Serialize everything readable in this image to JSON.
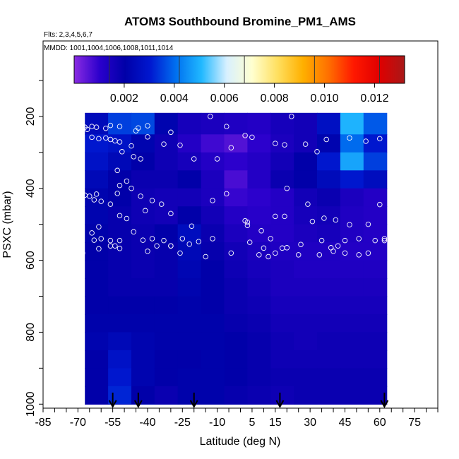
{
  "chart_data": {
    "type": "heatmap",
    "title": "ATOM3 Southbound Bromine_PM1_AMS",
    "subtitle_flights": "Flts: 2,3,4,5,6,7",
    "subtitle_dates": "MMDD: 1001,1004,1006,1008,1011,1014",
    "xlabel": "Latitude (deg N)",
    "ylabel": "PSXC (mbar)",
    "xlim": [
      -85,
      85
    ],
    "ylim": [
      1000,
      0
    ],
    "x_ticks": [
      -85,
      -70,
      -55,
      -40,
      -25,
      -10,
      5,
      15,
      30,
      45,
      60,
      75
    ],
    "y_ticks": [
      200,
      400,
      600,
      800,
      1000
    ],
    "colorbar": {
      "range": [
        0,
        0.0132
      ],
      "ticks": [
        "0.002",
        "0.004",
        "0.006",
        "0.008",
        "0.010",
        "0.012"
      ],
      "tick_values": [
        0.002,
        0.004,
        0.006,
        0.008,
        0.01,
        0.012
      ],
      "colors": [
        "#8a2be2",
        "#2b00cc",
        "#0000a8",
        "#0018d0",
        "#0070f0",
        "#20b8ff",
        "#d8f0ff",
        "#ffffd0",
        "#ffe060",
        "#ffb000",
        "#ff7000",
        "#ff1800",
        "#e00000",
        "#a81818"
      ]
    },
    "grid": {
      "lat_start": -67,
      "lat_step": 10,
      "p_start": 200,
      "p_step": 50,
      "values": [
        [
          0.0025,
          0.0035,
          0.0036,
          0.0022,
          0.0015,
          0.0014,
          0.0013,
          0.0012,
          0.0015,
          0.0016,
          0.0027,
          0.005,
          0.0038
        ],
        [
          0.003,
          0.0028,
          0.0022,
          0.0017,
          0.0012,
          0.0008,
          0.0006,
          0.001,
          0.0014,
          0.0016,
          0.0022,
          0.004,
          0.003
        ],
        [
          0.0028,
          0.0024,
          0.002,
          0.0017,
          0.0015,
          0.0012,
          0.001,
          0.0012,
          0.0016,
          0.002,
          0.003,
          0.0048,
          0.0035
        ],
        [
          0.0024,
          0.002,
          0.0018,
          0.0018,
          0.002,
          0.0014,
          0.0007,
          0.0012,
          0.0018,
          0.002,
          0.0025,
          0.003,
          0.0026
        ],
        [
          0.0022,
          0.002,
          0.0017,
          0.0016,
          0.0016,
          0.0014,
          0.0009,
          0.001,
          0.0012,
          0.0016,
          0.0018,
          0.0014,
          0.0012
        ],
        [
          0.0022,
          0.0019,
          0.0017,
          0.0016,
          0.002,
          0.0016,
          0.0012,
          0.0011,
          0.0012,
          0.0015,
          0.0016,
          0.0013,
          0.0012
        ],
        [
          0.0021,
          0.0019,
          0.0018,
          0.002,
          0.0026,
          0.0018,
          0.0014,
          0.0012,
          0.0012,
          0.0014,
          0.0015,
          0.0013,
          0.0012
        ],
        [
          0.002,
          0.0019,
          0.0018,
          0.0019,
          0.0024,
          0.0019,
          0.0016,
          0.0014,
          0.0013,
          0.0013,
          0.0013,
          0.0012,
          0.0012
        ],
        [
          0.002,
          0.0019,
          0.0018,
          0.0019,
          0.0023,
          0.002,
          0.0017,
          0.0015,
          0.0014,
          0.0013,
          0.0013,
          0.0013,
          0.0013
        ],
        [
          0.002,
          0.0019,
          0.0019,
          0.0019,
          0.0022,
          0.002,
          0.0018,
          0.0016,
          0.0014,
          0.0014,
          0.0014,
          0.0014,
          0.0014
        ],
        [
          0.002,
          0.002,
          0.002,
          0.002,
          0.0021,
          0.002,
          0.0018,
          0.0017,
          0.0015,
          0.0015,
          0.0015,
          0.0015,
          0.0015
        ],
        [
          0.0021,
          0.0021,
          0.0021,
          0.0021,
          0.0021,
          0.0021,
          0.0019,
          0.0018,
          0.0016,
          0.0016,
          0.0016,
          0.0016,
          0.0016
        ],
        [
          0.0022,
          0.0024,
          0.0022,
          0.0021,
          0.0021,
          0.0021,
          0.002,
          0.0019,
          0.0017,
          0.0016,
          0.0017,
          0.0017,
          0.0017
        ],
        [
          0.002,
          0.0028,
          0.0022,
          0.002,
          0.002,
          0.0021,
          0.002,
          0.0019,
          0.0017,
          0.0017,
          0.0017,
          0.0017,
          0.0017
        ],
        [
          0.002,
          0.003,
          0.0022,
          0.002,
          0.0021,
          0.0021,
          0.002,
          0.0019,
          0.0018,
          0.0018,
          0.0018,
          0.0018,
          0.0018
        ],
        [
          0.002,
          0.0032,
          0.002,
          0.0018,
          0.0021,
          0.0021,
          0.0019,
          0.0018,
          0.0017,
          0.0018,
          0.0018,
          0.0018,
          0.0018
        ],
        [
          0.0018,
          0.0022,
          0.0026,
          0.0022,
          0.002,
          0.002,
          0.002,
          0.002,
          0.0018,
          0.002,
          0.0018,
          0.0018,
          0.0018
        ]
      ]
    },
    "sample_points": [
      [
        -83,
        226
      ],
      [
        -76,
        226
      ],
      [
        -70,
        226
      ],
      [
        -68,
        227
      ],
      [
        -67,
        230
      ],
      [
        -66,
        236
      ],
      [
        -64,
        228
      ],
      [
        -62,
        230
      ],
      [
        -58,
        233
      ],
      [
        -56,
        225
      ],
      [
        -52,
        228
      ],
      [
        -45,
        240
      ],
      [
        -44,
        232
      ],
      [
        -40,
        226
      ],
      [
        -30,
        244
      ],
      [
        -13,
        200
      ],
      [
        -6,
        228
      ],
      [
        -64,
        258
      ],
      [
        -61,
        262
      ],
      [
        -58,
        260
      ],
      [
        -56,
        264
      ],
      [
        -54,
        268
      ],
      [
        -52,
        271
      ],
      [
        -47,
        282
      ],
      [
        -40,
        257
      ],
      [
        -33,
        277
      ],
      [
        -26,
        280
      ],
      [
        -20,
        318
      ],
      [
        -10,
        318
      ],
      [
        -4,
        287
      ],
      [
        2,
        253
      ],
      [
        5,
        258
      ],
      [
        15,
        275
      ],
      [
        19,
        279
      ],
      [
        28,
        277
      ],
      [
        22,
        200
      ],
      [
        33,
        298
      ],
      [
        37,
        264
      ],
      [
        47,
        260
      ],
      [
        54,
        269
      ],
      [
        60,
        262
      ],
      [
        67,
        200
      ],
      [
        69,
        200
      ],
      [
        -51,
        298
      ],
      [
        -46,
        312
      ],
      [
        -43,
        318
      ],
      [
        -83,
        370
      ],
      [
        -85,
        400
      ],
      [
        -73,
        419
      ],
      [
        -67,
        419
      ],
      [
        -65,
        422
      ],
      [
        -63,
        432
      ],
      [
        -62,
        416
      ],
      [
        -60,
        436
      ],
      [
        -56,
        444
      ],
      [
        -53,
        414
      ],
      [
        -52,
        392
      ],
      [
        -49,
        380
      ],
      [
        -47,
        400
      ],
      [
        -53,
        350
      ],
      [
        -43,
        422
      ],
      [
        -38,
        434
      ],
      [
        -34,
        444
      ],
      [
        -52,
        476
      ],
      [
        -49,
        484
      ],
      [
        -41,
        462
      ],
      [
        -30,
        470
      ],
      [
        -21,
        505
      ],
      [
        -12,
        434
      ],
      [
        -6,
        415
      ],
      [
        2,
        490
      ],
      [
        3,
        494
      ],
      [
        3,
        503
      ],
      [
        15,
        478
      ],
      [
        9,
        518
      ],
      [
        19,
        478
      ],
      [
        20,
        400
      ],
      [
        29,
        444
      ],
      [
        31,
        492
      ],
      [
        36,
        483
      ],
      [
        41,
        488
      ],
      [
        47,
        501
      ],
      [
        55,
        500
      ],
      [
        60,
        445
      ],
      [
        71,
        400
      ],
      [
        72,
        352
      ],
      [
        -70,
        545
      ],
      [
        -69,
        510
      ],
      [
        -64,
        524
      ],
      [
        -61,
        507
      ],
      [
        -63,
        544
      ],
      [
        -60,
        540
      ],
      [
        -56,
        545
      ],
      [
        -54,
        560
      ],
      [
        -52,
        567
      ],
      [
        -52,
        545
      ],
      [
        -46,
        521
      ],
      [
        -42,
        544
      ],
      [
        -38,
        540
      ],
      [
        -36,
        560
      ],
      [
        -30,
        560
      ],
      [
        -25,
        540
      ],
      [
        -22,
        555
      ],
      [
        -18,
        548
      ],
      [
        -12,
        540
      ],
      [
        -4,
        580
      ],
      [
        4,
        550
      ],
      [
        10,
        566
      ],
      [
        13,
        540
      ],
      [
        15,
        580
      ],
      [
        18,
        566
      ],
      [
        26,
        556
      ],
      [
        35,
        545
      ],
      [
        39,
        565
      ],
      [
        42,
        560
      ],
      [
        45,
        545
      ],
      [
        51,
        540
      ],
      [
        58,
        545
      ],
      [
        62,
        545
      ],
      [
        68,
        570
      ],
      [
        -68,
        580
      ],
      [
        -61,
        568
      ],
      [
        -56,
        560
      ],
      [
        -40,
        575
      ],
      [
        -33,
        545
      ],
      [
        -30,
        560
      ],
      [
        -26,
        580
      ],
      [
        -15,
        590
      ],
      [
        8,
        585
      ],
      [
        12,
        590
      ],
      [
        20,
        565
      ],
      [
        25,
        585
      ],
      [
        34,
        585
      ],
      [
        40,
        575
      ],
      [
        45,
        580
      ],
      [
        51,
        585
      ],
      [
        55,
        580
      ],
      [
        62,
        540
      ],
      [
        68,
        555
      ]
    ],
    "flight_markers_lat": [
      -55,
      -44,
      -20,
      17,
      62
    ]
  }
}
